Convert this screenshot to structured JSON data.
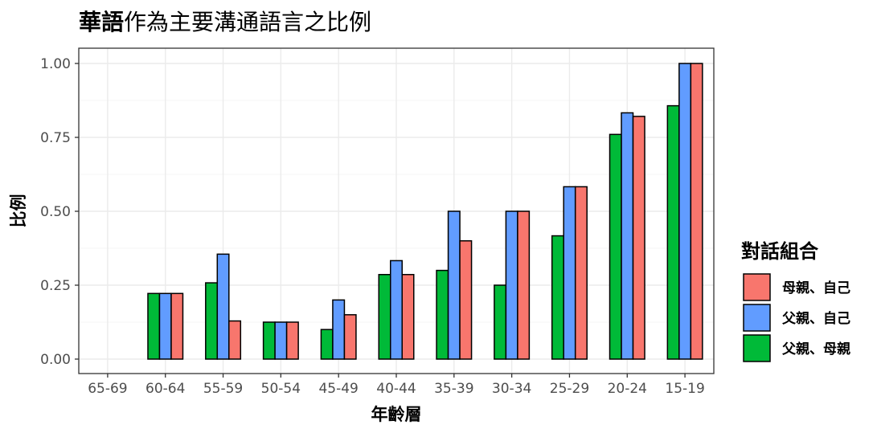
{
  "chart_data": {
    "type": "bar",
    "title_bold": "華語",
    "title_rest": "作為主要溝通語言之比例",
    "xlabel": "年齡層",
    "ylabel": "比例",
    "ylim": [
      0,
      1
    ],
    "yticks": [
      "0.00",
      "0.25",
      "0.50",
      "0.75",
      "1.00"
    ],
    "ytick_values": [
      0,
      0.25,
      0.5,
      0.75,
      1.0
    ],
    "grid": true,
    "legend_position": "right",
    "legend_title": "對話組合",
    "categories": [
      "65-69",
      "60-64",
      "55-59",
      "50-54",
      "45-49",
      "40-44",
      "35-39",
      "30-34",
      "25-29",
      "20-24",
      "15-19"
    ],
    "series": [
      {
        "name": "父親、母親",
        "color": "#00BA38",
        "values": [
          0,
          0.222,
          0.258,
          0.125,
          0.1,
          0.286,
          0.3,
          0.25,
          0.417,
          0.76,
          0.857
        ]
      },
      {
        "name": "父親、自己",
        "color": "#619CFF",
        "values": [
          0,
          0.222,
          0.355,
          0.125,
          0.2,
          0.333,
          0.5,
          0.5,
          0.583,
          0.833,
          1.0
        ]
      },
      {
        "name": "母親、自己",
        "color": "#F8766D",
        "values": [
          0,
          0.222,
          0.129,
          0.125,
          0.15,
          0.286,
          0.4,
          0.5,
          0.583,
          0.821,
          1.0
        ]
      }
    ],
    "legend_order": [
      "母親、自己",
      "父親、自己",
      "父親、母親"
    ]
  }
}
